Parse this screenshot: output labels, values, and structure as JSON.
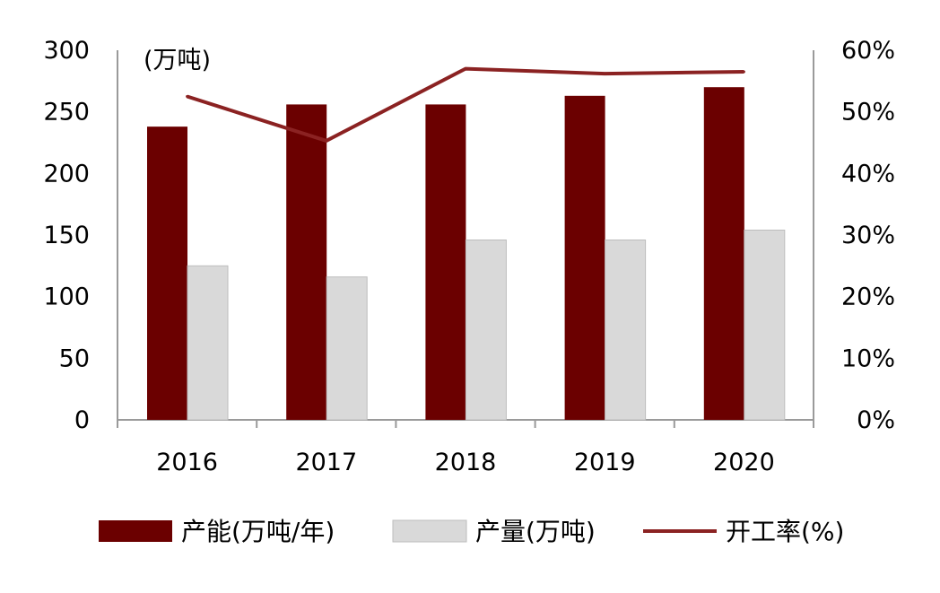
{
  "chart_data": {
    "type": "bar",
    "categories": [
      "2016",
      "2017",
      "2018",
      "2019",
      "2020"
    ],
    "left_axis": {
      "unit_label": "(万吨)",
      "ylim": [
        0,
        300
      ],
      "ticks": [
        "0",
        "50",
        "100",
        "150",
        "200",
        "250",
        "300"
      ]
    },
    "right_axis": {
      "ylim": [
        0,
        60
      ],
      "ticks": [
        "0%",
        "10%",
        "20%",
        "30%",
        "40%",
        "50%",
        "60%"
      ]
    },
    "series": [
      {
        "name": "产能(万吨/年)",
        "kind": "bar",
        "axis": "left",
        "color": "#6b0000",
        "values": [
          238,
          256,
          256,
          263,
          270
        ]
      },
      {
        "name": "产量(万吨)",
        "kind": "bar",
        "axis": "left",
        "color": "#d9d9d9",
        "values": [
          125,
          116,
          146,
          146,
          154
        ]
      },
      {
        "name": "开工率(%)",
        "kind": "line",
        "axis": "right",
        "color": "#8b2222",
        "values": [
          52.5,
          45.3,
          57.0,
          56.2,
          56.5
        ]
      }
    ],
    "grid": false,
    "legend_position": "bottom"
  }
}
